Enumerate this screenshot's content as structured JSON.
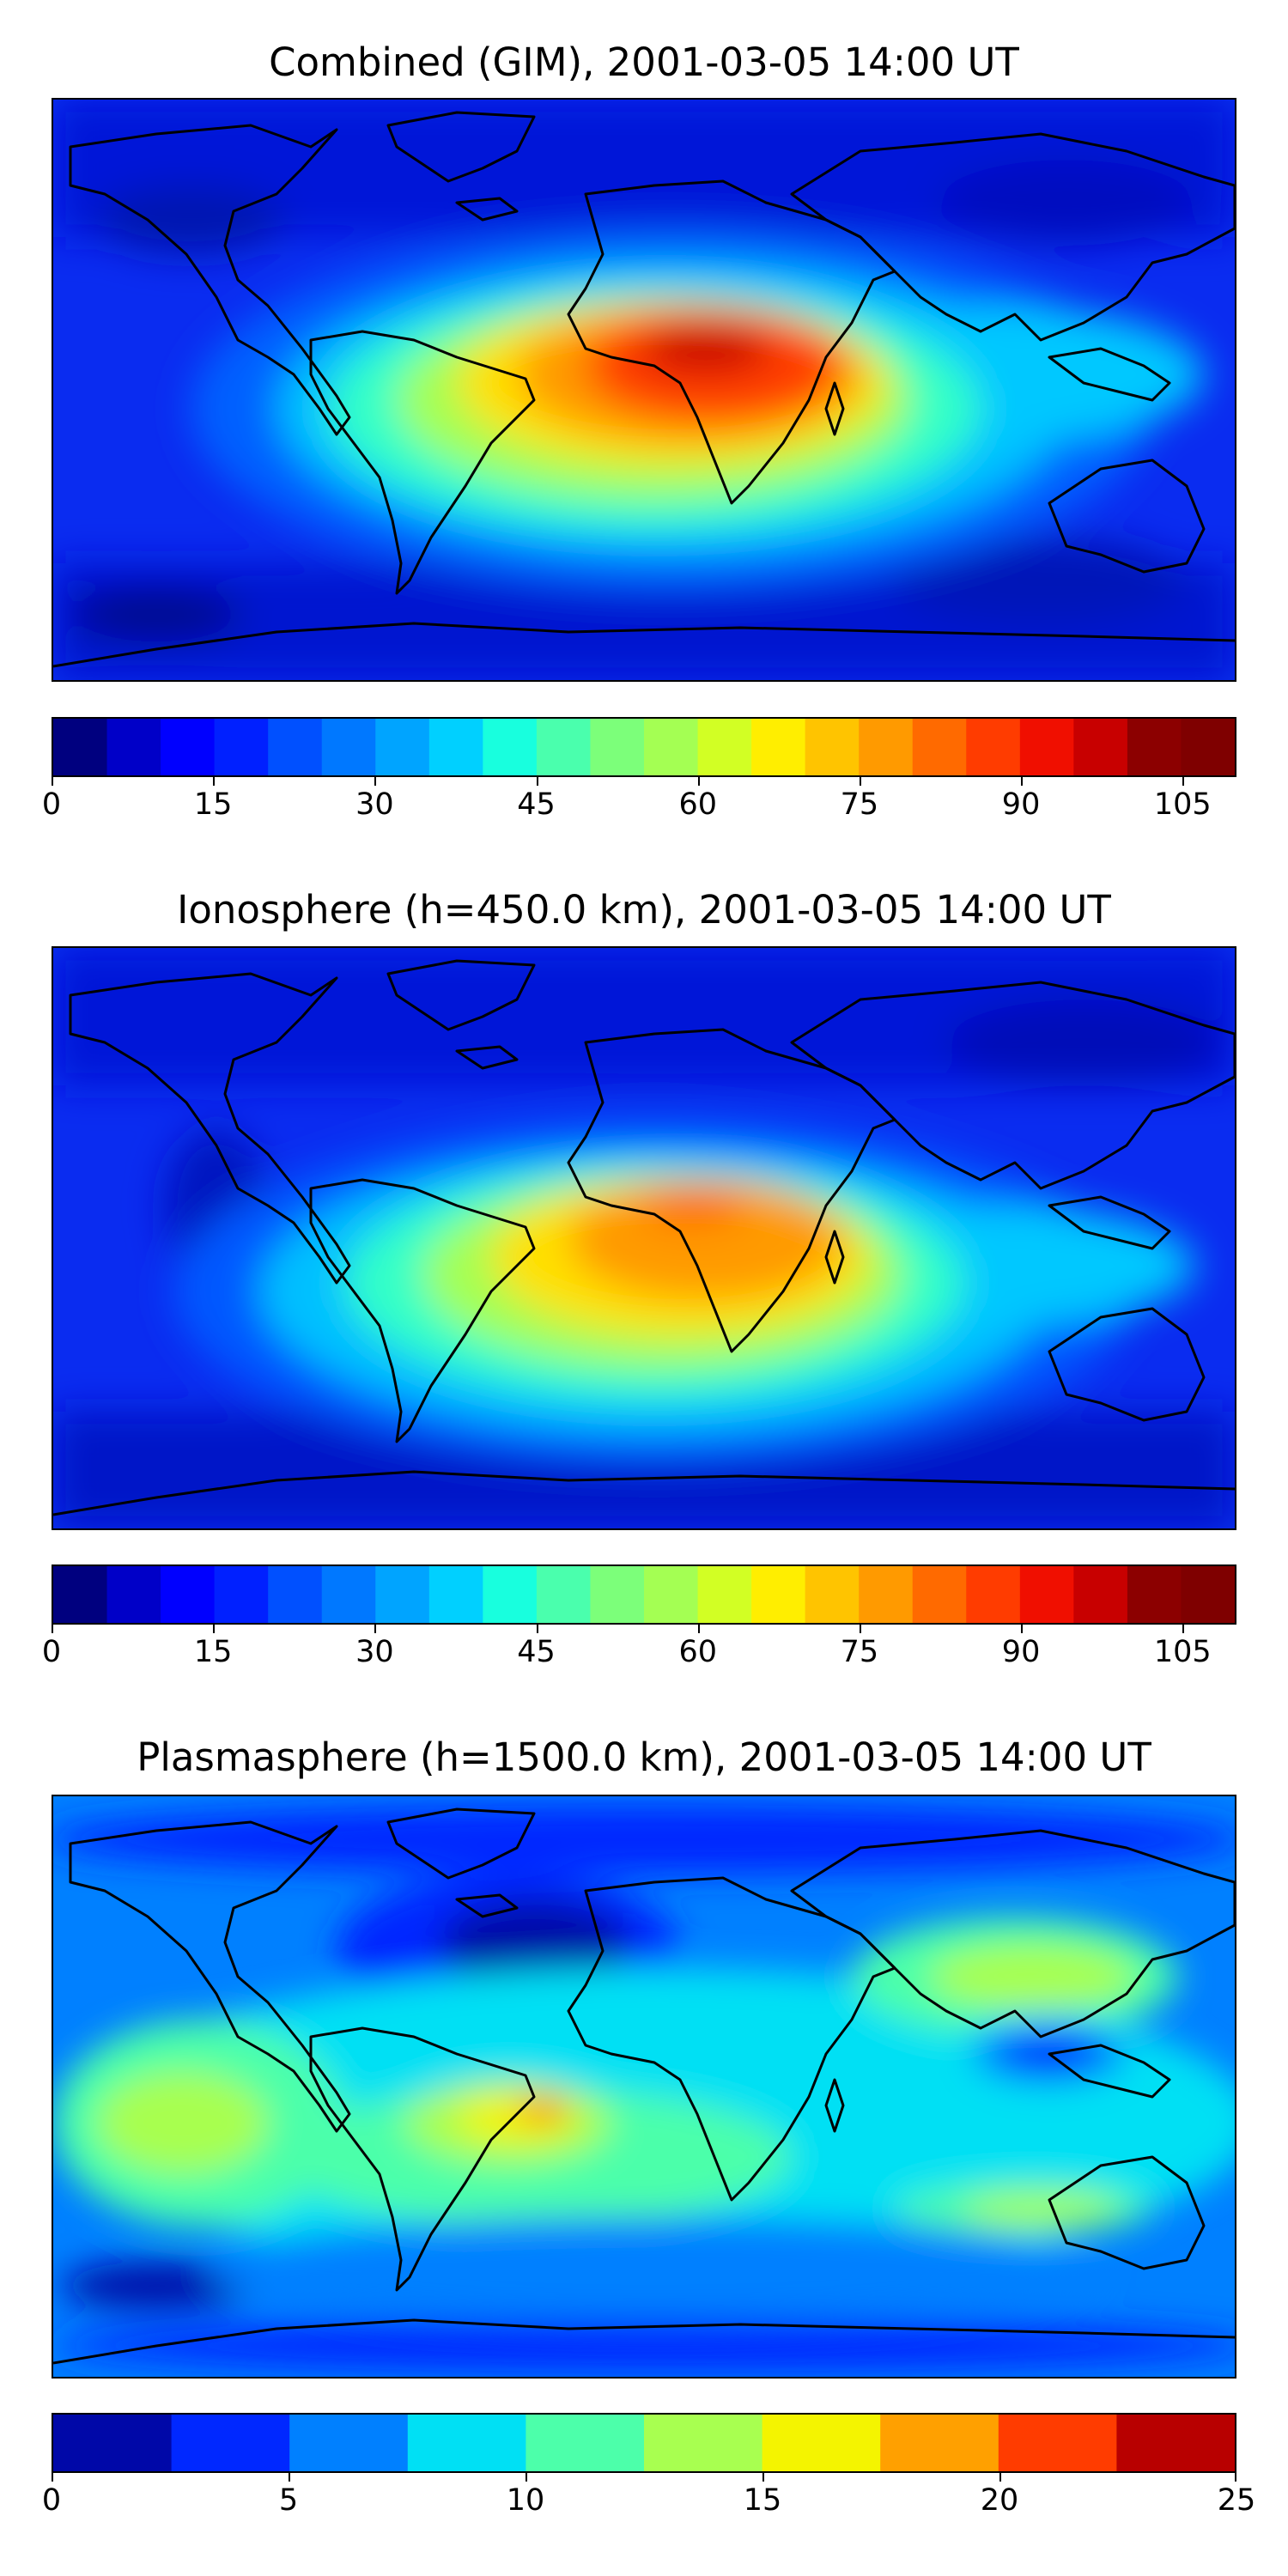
{
  "chart_data": [
    {
      "type": "heatmap",
      "title": "Combined (GIM), 2001-03-05 14:00 UT",
      "colorbar": {
        "min": 0,
        "max": 110,
        "step": 5,
        "ticks": [
          0,
          15,
          30,
          45,
          60,
          75,
          90,
          105
        ],
        "tick_labels": [
          "0",
          "15",
          "30",
          "45",
          "60",
          "75",
          "90",
          "105"
        ],
        "colors": [
          "#00007f",
          "#0000c8",
          "#0000ff",
          "#0020ff",
          "#0050ff",
          "#0078ff",
          "#00a4ff",
          "#00d0ff",
          "#18ffde",
          "#4affad",
          "#7cff7a",
          "#a4ff53",
          "#d2ff24",
          "#ffee00",
          "#ffc400",
          "#ff9a00",
          "#ff6a00",
          "#ff3c00",
          "#f00f00",
          "#c80000",
          "#8c0000",
          "#7f0000"
        ]
      },
      "features": [
        {
          "name": "equatorial-anomaly-max",
          "lon": 20,
          "lat": 10,
          "value": 100
        },
        {
          "name": "africa-crest",
          "lon": 15,
          "lat": 5,
          "value": 90
        },
        {
          "name": "south-america-arm",
          "lon": -45,
          "lat": -5,
          "value": 70
        },
        {
          "name": "asia-arm",
          "lon": 90,
          "lat": 10,
          "value": 60
        }
      ]
    },
    {
      "type": "heatmap",
      "title": "Ionosphere  (h=450.0 km), 2001-03-05 14:00 UT",
      "colorbar": {
        "min": 0,
        "max": 110,
        "step": 5,
        "ticks": [
          0,
          15,
          30,
          45,
          60,
          75,
          90,
          105
        ],
        "tick_labels": [
          "0",
          "15",
          "30",
          "45",
          "60",
          "75",
          "90",
          "105"
        ],
        "colors": [
          "#00007f",
          "#0000c8",
          "#0000ff",
          "#0020ff",
          "#0050ff",
          "#0078ff",
          "#00a4ff",
          "#00d0ff",
          "#18ffde",
          "#4affad",
          "#7cff7a",
          "#a4ff53",
          "#d2ff24",
          "#ffee00",
          "#ffc400",
          "#ff9a00",
          "#ff6a00",
          "#ff3c00",
          "#f00f00",
          "#c80000",
          "#8c0000",
          "#7f0000"
        ]
      },
      "features": [
        {
          "name": "equatorial-anomaly-max",
          "lon": 15,
          "lat": 5,
          "value": 85
        },
        {
          "name": "south-america-arm",
          "lon": -45,
          "lat": -5,
          "value": 60
        },
        {
          "name": "asia-arm",
          "lon": 90,
          "lat": 10,
          "value": 50
        }
      ]
    },
    {
      "type": "heatmap",
      "title": "Plasmasphere (h=1500.0 km), 2001-03-05 14:00 UT",
      "colorbar": {
        "min": 0,
        "max": 25,
        "step": 2.5,
        "ticks": [
          0,
          5,
          10,
          15,
          20,
          25
        ],
        "tick_labels": [
          "0",
          "5",
          "10",
          "15",
          "20",
          "25"
        ],
        "colors": [
          "#0008a8",
          "#0028ff",
          "#0080ff",
          "#00e0f4",
          "#4cffaa",
          "#a8ff50",
          "#f4f400",
          "#ffa000",
          "#ff3c00",
          "#b80000"
        ]
      },
      "features": [
        {
          "name": "brazil-max",
          "lon": -45,
          "lat": 0,
          "value": 20
        },
        {
          "name": "pacific-max",
          "lon": -145,
          "lat": 5,
          "value": 13
        },
        {
          "name": "east-asia-max",
          "lon": 110,
          "lat": 35,
          "value": 13
        },
        {
          "name": "maritime-continent-min",
          "lon": 115,
          "lat": 10,
          "value": 2
        }
      ]
    }
  ]
}
